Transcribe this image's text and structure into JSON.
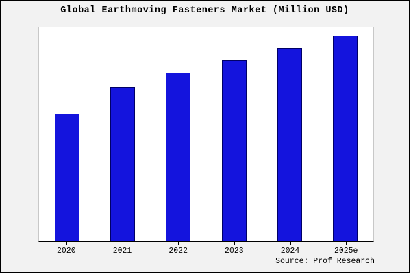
{
  "title": "Global Earthmoving Fasteners Market (Million USD)",
  "source": "Source: Prof Research",
  "chart_data": {
    "type": "bar",
    "title": "Global Earthmoving Fasteners Market (Million USD)",
    "categories": [
      "2020",
      "2021",
      "2022",
      "2023",
      "2024",
      "2025e"
    ],
    "values": [
      62,
      75,
      82,
      88,
      94,
      100
    ],
    "value_scale": "relative estimate from bar heights; no y-axis tick labels shown (2025e indexed to 100)",
    "xlabel": "",
    "ylabel": "",
    "ylim": [
      0,
      104
    ],
    "grid": false,
    "legend": false,
    "bar_color": "#1414dd",
    "bar_border_color": "#000066",
    "source_note": "Source: Prof Research"
  }
}
